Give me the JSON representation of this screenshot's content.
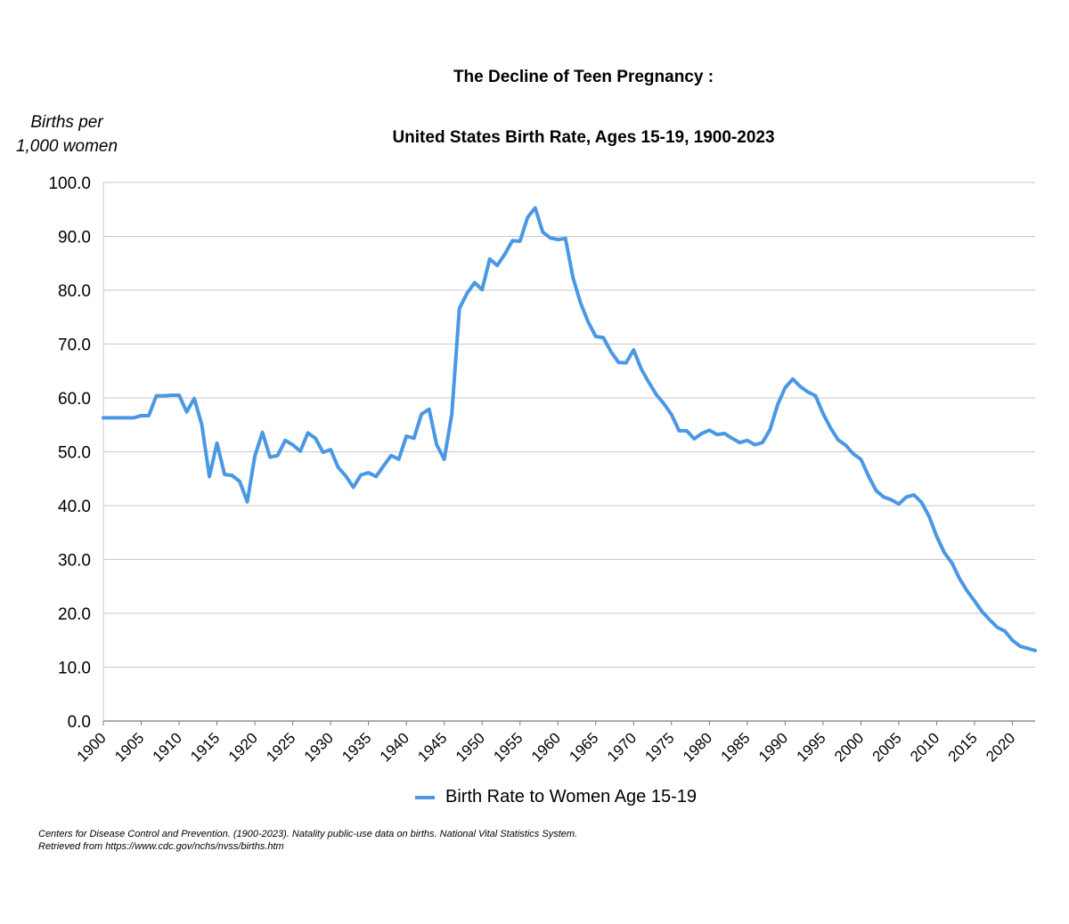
{
  "chart_data": {
    "type": "line",
    "title": "The Decline of Teen Pregnancy :",
    "subtitle": "United States Birth Rate, Ages 15-19, 1900-2023",
    "ylabel_line1": "Births per",
    "ylabel_line2": "1,000 women",
    "xlabel": "",
    "ylim": [
      0,
      100
    ],
    "xlim": [
      1900,
      2023
    ],
    "y_ticks": [
      "0.0",
      "10.0",
      "20.0",
      "30.0",
      "40.0",
      "50.0",
      "60.0",
      "70.0",
      "80.0",
      "90.0",
      "100.0"
    ],
    "x_ticks": [
      "1900",
      "1905",
      "1910",
      "1915",
      "1920",
      "1925",
      "1930",
      "1935",
      "1940",
      "1945",
      "1950",
      "1955",
      "1960",
      "1965",
      "1970",
      "1975",
      "1980",
      "1985",
      "1990",
      "1995",
      "2000",
      "2005",
      "2010",
      "2015",
      "2020"
    ],
    "grid": true,
    "legend_position": "bottom",
    "line_color": "#4a98e4",
    "series": [
      {
        "name": "Birth Rate to Women Age 15-19",
        "x": [
          1900,
          1901,
          1902,
          1903,
          1904,
          1905,
          1906,
          1907,
          1908,
          1909,
          1910,
          1911,
          1912,
          1913,
          1914,
          1915,
          1916,
          1917,
          1918,
          1919,
          1920,
          1921,
          1922,
          1923,
          1924,
          1925,
          1926,
          1927,
          1928,
          1929,
          1930,
          1931,
          1932,
          1933,
          1934,
          1935,
          1936,
          1937,
          1938,
          1939,
          1940,
          1941,
          1942,
          1943,
          1944,
          1945,
          1946,
          1947,
          1948,
          1949,
          1950,
          1951,
          1952,
          1953,
          1954,
          1955,
          1956,
          1957,
          1958,
          1959,
          1960,
          1961,
          1962,
          1963,
          1964,
          1965,
          1966,
          1967,
          1968,
          1969,
          1970,
          1971,
          1972,
          1973,
          1974,
          1975,
          1976,
          1977,
          1978,
          1979,
          1980,
          1981,
          1982,
          1983,
          1984,
          1985,
          1986,
          1987,
          1988,
          1989,
          1990,
          1991,
          1992,
          1993,
          1994,
          1995,
          1996,
          1997,
          1998,
          1999,
          2000,
          2001,
          2002,
          2003,
          2004,
          2005,
          2006,
          2007,
          2008,
          2009,
          2010,
          2011,
          2012,
          2013,
          2014,
          2015,
          2016,
          2017,
          2018,
          2019,
          2020,
          2021,
          2022,
          2023
        ],
        "values": [
          56.3,
          56.3,
          56.3,
          56.3,
          56.3,
          56.7,
          56.7,
          60.4,
          60.4,
          60.5,
          60.5,
          57.4,
          59.9,
          55.0,
          45.4,
          51.6,
          45.8,
          45.6,
          44.5,
          40.7,
          49.2,
          53.6,
          49.0,
          49.3,
          52.1,
          51.3,
          50.1,
          53.5,
          52.5,
          49.9,
          50.4,
          47.1,
          45.5,
          43.4,
          45.7,
          46.1,
          45.4,
          47.4,
          49.3,
          48.6,
          52.9,
          52.5,
          57.0,
          57.9,
          51.3,
          48.6,
          57.0,
          76.6,
          79.4,
          81.4,
          80.1,
          85.8,
          84.6,
          86.7,
          89.2,
          89.1,
          93.5,
          95.3,
          90.8,
          89.7,
          89.4,
          89.6,
          82.3,
          77.6,
          74.1,
          71.4,
          71.2,
          68.6,
          66.6,
          66.5,
          68.9,
          65.4,
          62.9,
          60.6,
          58.9,
          56.9,
          53.9,
          53.9,
          52.4,
          53.4,
          54.0,
          53.2,
          53.4,
          52.5,
          51.7,
          52.1,
          51.3,
          51.7,
          54.1,
          58.7,
          61.9,
          63.5,
          62.1,
          61.1,
          60.4,
          57.1,
          54.4,
          52.2,
          51.2,
          49.6,
          48.6,
          45.5,
          42.8,
          41.6,
          41.1,
          40.3,
          41.6,
          42.0,
          40.6,
          38.0,
          34.3,
          31.3,
          29.4,
          26.5,
          24.2,
          22.3,
          20.3,
          18.8,
          17.4,
          16.7,
          15.0,
          13.9,
          13.5,
          13.1
        ]
      }
    ]
  },
  "legend": {
    "label": "Birth Rate to Women Age 15-19"
  },
  "source": {
    "line1": "Centers for Disease Control and Prevention. (1900-2023). Natality public-use data on births. National Vital Statistics System.",
    "line2": "Retrieved from https://www.cdc.gov/nchs/nvss/births.htm"
  }
}
